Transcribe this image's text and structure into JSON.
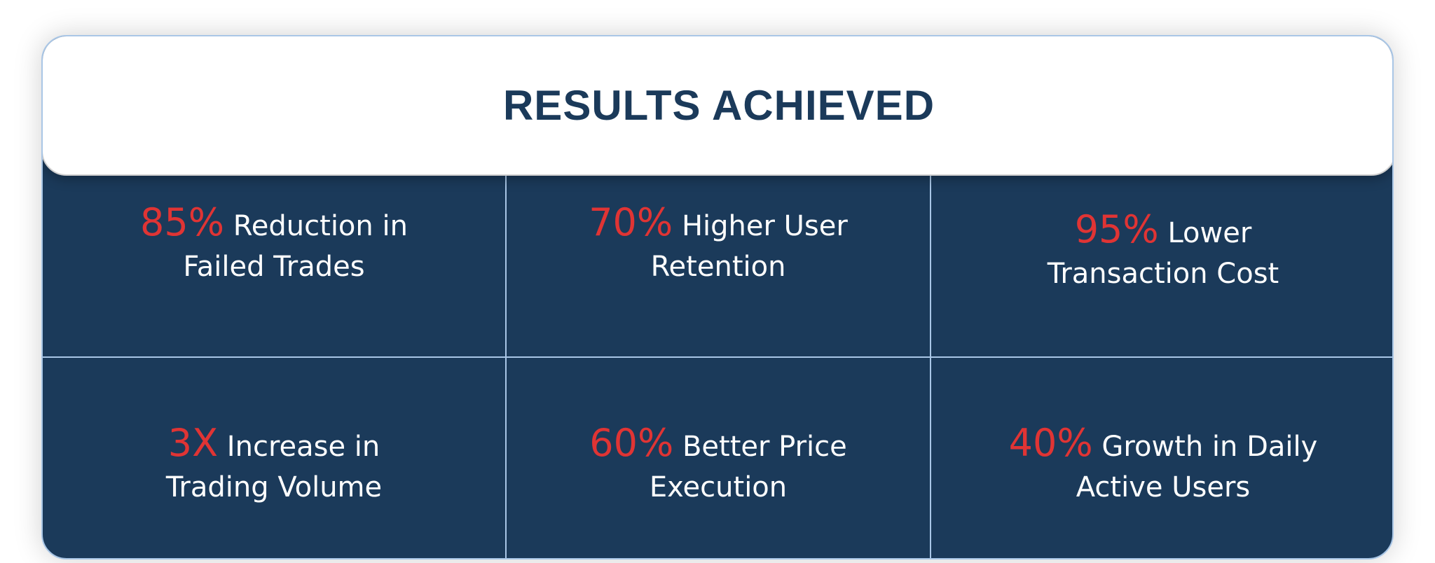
{
  "title": "RESULTS ACHIEVED",
  "colors": {
    "background": "#1b3a5a",
    "accent": "#e03434",
    "divider": "#a9c6e6"
  },
  "results": [
    {
      "value": "85%",
      "line1": "Reduction in",
      "line2": "Failed Trades"
    },
    {
      "value": "70%",
      "line1": "Higher User",
      "line2": "Retention"
    },
    {
      "value": "95%",
      "line1": "Lower",
      "line2": "Transaction Cost"
    },
    {
      "value": "3X",
      "line1": "Increase in",
      "line2": "Trading Volume"
    },
    {
      "value": "60%",
      "line1": "Better Price",
      "line2": "Execution"
    },
    {
      "value": "40%",
      "line1": "Growth in Daily",
      "line2": "Active Users"
    }
  ]
}
